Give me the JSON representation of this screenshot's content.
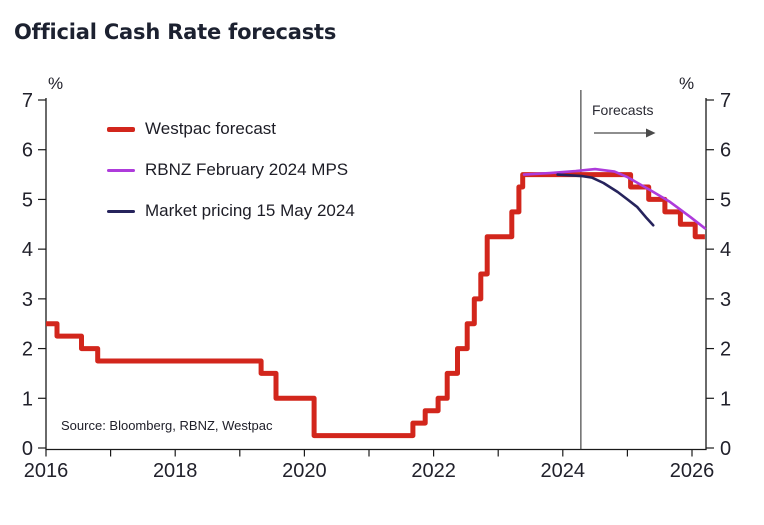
{
  "title": "Official Cash Rate forecasts",
  "axes": {
    "y_unit_left": "%",
    "y_unit_right": "%"
  },
  "legend": {
    "items": [
      {
        "label": "Westpac forecast",
        "color": "#d2261c"
      },
      {
        "label": "RBNZ February 2024 MPS",
        "color": "#ae3bdb"
      },
      {
        "label": "Market pricing 15 May 2024",
        "color": "#26235c"
      }
    ]
  },
  "annotations": {
    "forecasts_label": "Forecasts"
  },
  "source": "Source: Bloomberg, RBNZ, Westpac",
  "chart_data": {
    "type": "line",
    "title": "Official Cash Rate forecasts",
    "ylabel": "%",
    "ylim": [
      0,
      7
    ],
    "xlim": [
      2016,
      2026.2
    ],
    "grid": false,
    "legend_position": "upper-left-inside",
    "y_ticks": [
      0,
      1,
      2,
      3,
      4,
      5,
      6,
      7
    ],
    "x_tick_years": [
      2016,
      2017,
      2018,
      2019,
      2020,
      2021,
      2022,
      2023,
      2024,
      2025,
      2026
    ],
    "x_labeled_years": [
      2016,
      2018,
      2020,
      2022,
      2024,
      2026
    ],
    "forecast_line_year": 2024.28,
    "series": [
      {
        "name": "Westpac forecast",
        "color": "#d2261c",
        "style": "step",
        "width": 5,
        "points": [
          [
            2016.0,
            2.5
          ],
          [
            2016.17,
            2.25
          ],
          [
            2016.55,
            2.0
          ],
          [
            2016.8,
            1.75
          ],
          [
            2019.33,
            1.5
          ],
          [
            2019.56,
            1.0
          ],
          [
            2020.15,
            0.25
          ],
          [
            2021.68,
            0.5
          ],
          [
            2021.87,
            0.75
          ],
          [
            2022.07,
            1.0
          ],
          [
            2022.21,
            1.5
          ],
          [
            2022.37,
            2.0
          ],
          [
            2022.52,
            2.5
          ],
          [
            2022.63,
            3.0
          ],
          [
            2022.73,
            3.5
          ],
          [
            2022.83,
            4.25
          ],
          [
            2023.21,
            4.75
          ],
          [
            2023.32,
            5.25
          ],
          [
            2023.38,
            5.5
          ],
          [
            2025.05,
            5.25
          ],
          [
            2025.33,
            5.0
          ],
          [
            2025.58,
            4.75
          ],
          [
            2025.82,
            4.5
          ],
          [
            2026.05,
            4.25
          ],
          [
            2026.2,
            4.25
          ]
        ]
      },
      {
        "name": "RBNZ February 2024 MPS",
        "color": "#ae3bdb",
        "style": "smooth",
        "width": 2.6,
        "points": [
          [
            2023.4,
            5.5
          ],
          [
            2023.8,
            5.53
          ],
          [
            2024.2,
            5.57
          ],
          [
            2024.5,
            5.61
          ],
          [
            2024.8,
            5.56
          ],
          [
            2025.0,
            5.45
          ],
          [
            2025.35,
            5.19
          ],
          [
            2025.66,
            4.95
          ],
          [
            2025.97,
            4.65
          ],
          [
            2026.2,
            4.42
          ]
        ]
      },
      {
        "name": "Market pricing 15 May 2024",
        "color": "#26235c",
        "style": "smooth",
        "width": 2.6,
        "points": [
          [
            2023.92,
            5.5
          ],
          [
            2024.3,
            5.47
          ],
          [
            2024.45,
            5.44
          ],
          [
            2024.63,
            5.33
          ],
          [
            2024.85,
            5.15
          ],
          [
            2025.0,
            5.0
          ],
          [
            2025.15,
            4.85
          ],
          [
            2025.3,
            4.62
          ],
          [
            2025.4,
            4.48
          ]
        ]
      }
    ]
  }
}
